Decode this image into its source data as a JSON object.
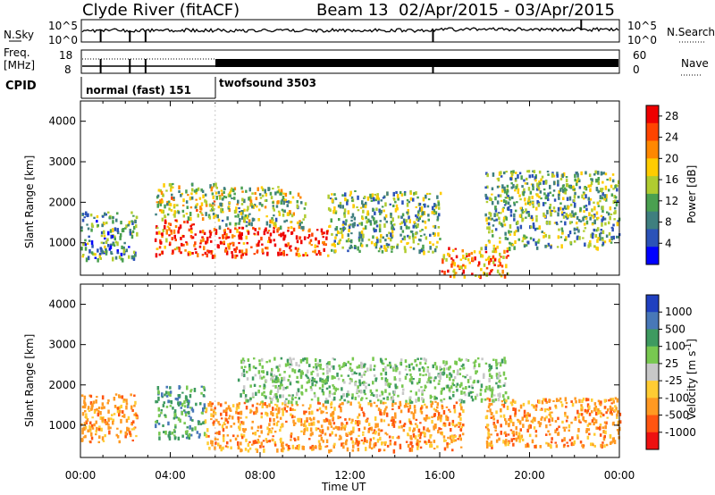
{
  "header": {
    "station": "Clyde River (fitACF)",
    "beam": "Beam 13",
    "dates": "02/Apr/2015 - 03/Apr/2015"
  },
  "colors": {
    "sky_line": "#000000",
    "grey_scatter": "#c8c8c8"
  },
  "strip1": {
    "left_label": "N.Sky",
    "right_label": "N.Search",
    "left_ticks": [
      "10^5",
      "10^0"
    ],
    "right_ticks": [
      "10^5",
      "10^0"
    ]
  },
  "strip2": {
    "left_label_1": "Freq.",
    "left_label_2": "[MHz]",
    "right_label": "Nave",
    "left_ticks": [
      "18",
      "8"
    ],
    "right_ticks": [
      "60",
      "0"
    ]
  },
  "cpid": {
    "label": "CPID",
    "segments": [
      {
        "name": "normal (fast) 151",
        "start_hour": 0,
        "end_hour": 6
      },
      {
        "name": "twofsound 3503",
        "start_hour": 6,
        "end_hour": 24
      }
    ]
  },
  "chart_data": [
    {
      "type": "heatmap",
      "panel": "power",
      "ylabel": "Slant Range [km]",
      "xlim_hours": [
        0,
        24
      ],
      "ylim_km": [
        200,
        4500
      ],
      "yticks": [
        1000,
        2000,
        3000,
        4000
      ],
      "colorbar": {
        "label": "Power [dB]",
        "ticks": [
          4,
          8,
          12,
          16,
          20,
          24,
          28
        ],
        "range": [
          0,
          30
        ],
        "colors": [
          "#0000ff",
          "#2b52b8",
          "#3f7f7f",
          "#4aa050",
          "#b0cc30",
          "#ffcc00",
          "#ff8800",
          "#ff4400",
          "#ee0000"
        ]
      },
      "echo_regions": [
        {
          "t0": 0.0,
          "t1": 2.5,
          "r0": 600,
          "r1": 1800,
          "level": 10
        },
        {
          "t0": 3.3,
          "t1": 5.0,
          "r0": 700,
          "r1": 1600,
          "level": 24
        },
        {
          "t0": 3.3,
          "t1": 6.0,
          "r0": 1600,
          "r1": 2500,
          "level": 16
        },
        {
          "t0": 5.0,
          "t1": 11.0,
          "r0": 700,
          "r1": 1400,
          "level": 27
        },
        {
          "t0": 6.0,
          "t1": 10.0,
          "r0": 1400,
          "r1": 2400,
          "level": 14
        },
        {
          "t0": 11.0,
          "t1": 16.0,
          "r0": 800,
          "r1": 2300,
          "level": 12
        },
        {
          "t0": 16.0,
          "t1": 19.0,
          "r0": 200,
          "r1": 900,
          "level": 22
        },
        {
          "t0": 18.0,
          "t1": 24.0,
          "r0": 900,
          "r1": 2800,
          "level": 12
        }
      ]
    },
    {
      "type": "heatmap",
      "panel": "velocity",
      "ylabel": "Slant Range [km]",
      "xlabel": "Time UT",
      "xticks": [
        "00:00",
        "04:00",
        "08:00",
        "12:00",
        "16:00",
        "20:00",
        "00:00"
      ],
      "xlim_hours": [
        0,
        24
      ],
      "ylim_km": [
        200,
        4500
      ],
      "yticks": [
        1000,
        2000,
        3000,
        4000
      ],
      "colorbar": {
        "label": "Velocity [m s^-1]",
        "ticks": [
          "1000",
          "500",
          "100",
          "25",
          "-25",
          "-100",
          "-500",
          "-1000"
        ],
        "colors": [
          "#2040c0",
          "#4878b8",
          "#3e9a60",
          "#78c850",
          "#c8c8c8",
          "#ffcc33",
          "#ff9922",
          "#ff5511",
          "#ee1111"
        ]
      },
      "echo_regions": [
        {
          "t0": 0.0,
          "t1": 2.5,
          "r0": 600,
          "r1": 1800,
          "level": "-500"
        },
        {
          "t0": 3.3,
          "t1": 5.5,
          "r0": 700,
          "r1": 2000,
          "level": "100"
        },
        {
          "t0": 5.5,
          "t1": 17.0,
          "r0": 400,
          "r1": 1600,
          "level": "-500"
        },
        {
          "t0": 7.0,
          "t1": 19.0,
          "r0": 1600,
          "r1": 2700,
          "level": "25"
        },
        {
          "t0": 18.0,
          "t1": 24.0,
          "r0": 500,
          "r1": 1700,
          "level": "-500"
        }
      ]
    }
  ]
}
